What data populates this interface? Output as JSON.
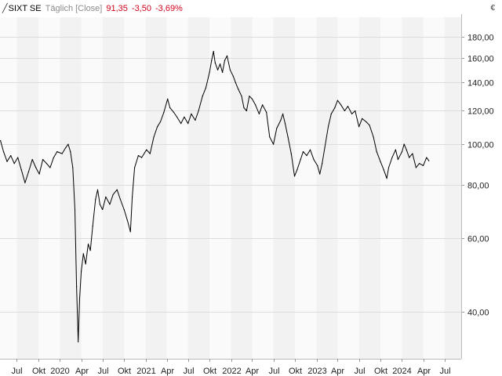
{
  "header": {
    "symbol": "SIXT SE",
    "period": "Täglich [Close]",
    "last": "91,35",
    "change": "-3,50",
    "change_pct": "-3,69%",
    "currency": "€"
  },
  "colors": {
    "line": "#000000",
    "negative": "#d0021b",
    "band": "#f2f2f2",
    "grid": "#dcdcdc"
  },
  "chart_data": {
    "type": "line",
    "y_scale": "log",
    "ylim": [
      31,
      200
    ],
    "xlim": [
      "2019-04-20",
      "2024-09-10"
    ],
    "grid": true,
    "y_ticks": [
      {
        "value": 40,
        "label": "40,00"
      },
      {
        "value": 60,
        "label": "60,00"
      },
      {
        "value": 80,
        "label": "80,00"
      },
      {
        "value": 100,
        "label": "100,00"
      },
      {
        "value": 120,
        "label": "120,00"
      },
      {
        "value": 140,
        "label": "140,00"
      },
      {
        "value": 160,
        "label": "160,00"
      },
      {
        "value": 180,
        "label": "180,00"
      }
    ],
    "x_ticks": [
      {
        "date": "2019-07-01",
        "label": "Jul"
      },
      {
        "date": "2019-10-01",
        "label": "Okt"
      },
      {
        "date": "2020-01-01",
        "label": "2020"
      },
      {
        "date": "2020-04-01",
        "label": "Apr"
      },
      {
        "date": "2020-07-01",
        "label": "Jul"
      },
      {
        "date": "2020-10-01",
        "label": "Okt"
      },
      {
        "date": "2021-01-01",
        "label": "2021"
      },
      {
        "date": "2021-04-01",
        "label": "Apr"
      },
      {
        "date": "2021-07-01",
        "label": "Jul"
      },
      {
        "date": "2021-10-01",
        "label": "Okt"
      },
      {
        "date": "2022-01-01",
        "label": "2022"
      },
      {
        "date": "2022-04-01",
        "label": "Apr"
      },
      {
        "date": "2022-07-01",
        "label": "Jul"
      },
      {
        "date": "2022-10-01",
        "label": "Okt"
      },
      {
        "date": "2023-01-01",
        "label": "2023"
      },
      {
        "date": "2023-04-01",
        "label": "Apr"
      },
      {
        "date": "2023-07-01",
        "label": "Jul"
      },
      {
        "date": "2023-10-01",
        "label": "Okt"
      },
      {
        "date": "2024-01-01",
        "label": "2024"
      },
      {
        "date": "2024-04-01",
        "label": "Apr"
      },
      {
        "date": "2024-07-01",
        "label": "Jul"
      }
    ],
    "series": [
      {
        "values": [
          [
            "2019-04-22",
            102
          ],
          [
            "2019-05-05",
            96
          ],
          [
            "2019-05-20",
            91
          ],
          [
            "2019-06-05",
            94
          ],
          [
            "2019-06-20",
            90
          ],
          [
            "2019-07-05",
            93
          ],
          [
            "2019-07-20",
            87
          ],
          [
            "2019-08-05",
            81
          ],
          [
            "2019-08-20",
            86
          ],
          [
            "2019-09-05",
            92
          ],
          [
            "2019-09-20",
            88
          ],
          [
            "2019-10-05",
            85
          ],
          [
            "2019-10-20",
            92
          ],
          [
            "2019-11-05",
            90
          ],
          [
            "2019-11-20",
            88
          ],
          [
            "2019-12-05",
            93
          ],
          [
            "2019-12-20",
            96
          ],
          [
            "2020-01-10",
            95
          ],
          [
            "2020-01-25",
            98
          ],
          [
            "2020-02-05",
            100
          ],
          [
            "2020-02-15",
            96
          ],
          [
            "2020-02-25",
            88
          ],
          [
            "2020-03-05",
            70
          ],
          [
            "2020-03-12",
            46
          ],
          [
            "2020-03-19",
            34
          ],
          [
            "2020-03-25",
            43
          ],
          [
            "2020-04-01",
            50
          ],
          [
            "2020-04-10",
            55
          ],
          [
            "2020-04-20",
            52
          ],
          [
            "2020-05-01",
            58
          ],
          [
            "2020-05-10",
            56
          ],
          [
            "2020-05-20",
            64
          ],
          [
            "2020-06-01",
            74
          ],
          [
            "2020-06-10",
            78
          ],
          [
            "2020-06-20",
            72
          ],
          [
            "2020-07-01",
            70
          ],
          [
            "2020-07-15",
            75
          ],
          [
            "2020-08-01",
            72
          ],
          [
            "2020-08-15",
            76
          ],
          [
            "2020-09-01",
            78
          ],
          [
            "2020-09-15",
            74
          ],
          [
            "2020-10-01",
            70
          ],
          [
            "2020-10-15",
            66
          ],
          [
            "2020-10-28",
            62
          ],
          [
            "2020-11-05",
            75
          ],
          [
            "2020-11-15",
            88
          ],
          [
            "2020-12-01",
            94
          ],
          [
            "2020-12-15",
            93
          ],
          [
            "2021-01-05",
            97
          ],
          [
            "2021-01-20",
            95
          ],
          [
            "2021-02-05",
            104
          ],
          [
            "2021-02-20",
            110
          ],
          [
            "2021-03-05",
            113
          ],
          [
            "2021-03-20",
            119
          ],
          [
            "2021-04-05",
            128
          ],
          [
            "2021-04-15",
            122
          ],
          [
            "2021-05-01",
            119
          ],
          [
            "2021-05-15",
            116
          ],
          [
            "2021-06-01",
            112
          ],
          [
            "2021-06-15",
            116
          ],
          [
            "2021-07-01",
            112
          ],
          [
            "2021-07-15",
            118
          ],
          [
            "2021-08-01",
            114
          ],
          [
            "2021-08-15",
            120
          ],
          [
            "2021-09-01",
            130
          ],
          [
            "2021-09-15",
            136
          ],
          [
            "2021-10-01",
            148
          ],
          [
            "2021-10-10",
            158
          ],
          [
            "2021-10-18",
            166
          ],
          [
            "2021-10-25",
            156
          ],
          [
            "2021-11-05",
            150
          ],
          [
            "2021-11-15",
            155
          ],
          [
            "2021-11-25",
            148
          ],
          [
            "2021-12-05",
            158
          ],
          [
            "2021-12-15",
            162
          ],
          [
            "2021-12-28",
            150
          ],
          [
            "2022-01-10",
            145
          ],
          [
            "2022-01-20",
            140
          ],
          [
            "2022-02-01",
            135
          ],
          [
            "2022-02-15",
            130
          ],
          [
            "2022-02-25",
            122
          ],
          [
            "2022-03-08",
            120
          ],
          [
            "2022-03-20",
            130
          ],
          [
            "2022-04-01",
            128
          ],
          [
            "2022-04-15",
            124
          ],
          [
            "2022-05-01",
            118
          ],
          [
            "2022-05-15",
            124
          ],
          [
            "2022-06-01",
            119
          ],
          [
            "2022-06-15",
            104
          ],
          [
            "2022-07-01",
            100
          ],
          [
            "2022-07-15",
            109
          ],
          [
            "2022-08-01",
            114
          ],
          [
            "2022-08-10",
            118
          ],
          [
            "2022-08-20",
            112
          ],
          [
            "2022-09-01",
            104
          ],
          [
            "2022-09-15",
            95
          ],
          [
            "2022-09-29",
            84
          ],
          [
            "2022-10-10",
            87
          ],
          [
            "2022-10-25",
            92
          ],
          [
            "2022-11-05",
            96
          ],
          [
            "2022-11-20",
            94
          ],
          [
            "2022-12-05",
            97
          ],
          [
            "2022-12-20",
            92
          ],
          [
            "2023-01-05",
            89
          ],
          [
            "2023-01-15",
            85
          ],
          [
            "2023-01-25",
            90
          ],
          [
            "2023-02-05",
            98
          ],
          [
            "2023-02-20",
            110
          ],
          [
            "2023-03-05",
            118
          ],
          [
            "2023-03-20",
            122
          ],
          [
            "2023-04-01",
            127
          ],
          [
            "2023-04-15",
            124
          ],
          [
            "2023-05-01",
            120
          ],
          [
            "2023-05-15",
            123
          ],
          [
            "2023-06-01",
            118
          ],
          [
            "2023-06-15",
            120
          ],
          [
            "2023-07-01",
            110
          ],
          [
            "2023-07-15",
            115
          ],
          [
            "2023-08-01",
            113
          ],
          [
            "2023-08-15",
            111
          ],
          [
            "2023-09-01",
            104
          ],
          [
            "2023-09-15",
            96
          ],
          [
            "2023-10-01",
            91
          ],
          [
            "2023-10-15",
            87
          ],
          [
            "2023-10-28",
            83
          ],
          [
            "2023-11-05",
            88
          ],
          [
            "2023-11-20",
            93
          ],
          [
            "2023-12-05",
            97
          ],
          [
            "2023-12-15",
            92
          ],
          [
            "2024-01-01",
            96
          ],
          [
            "2024-01-10",
            100
          ],
          [
            "2024-01-20",
            97
          ],
          [
            "2024-02-01",
            93
          ],
          [
            "2024-02-15",
            95
          ],
          [
            "2024-03-01",
            88
          ],
          [
            "2024-03-15",
            90
          ],
          [
            "2024-04-01",
            89
          ],
          [
            "2024-04-15",
            93
          ],
          [
            "2024-04-25",
            91.35
          ]
        ]
      }
    ]
  }
}
